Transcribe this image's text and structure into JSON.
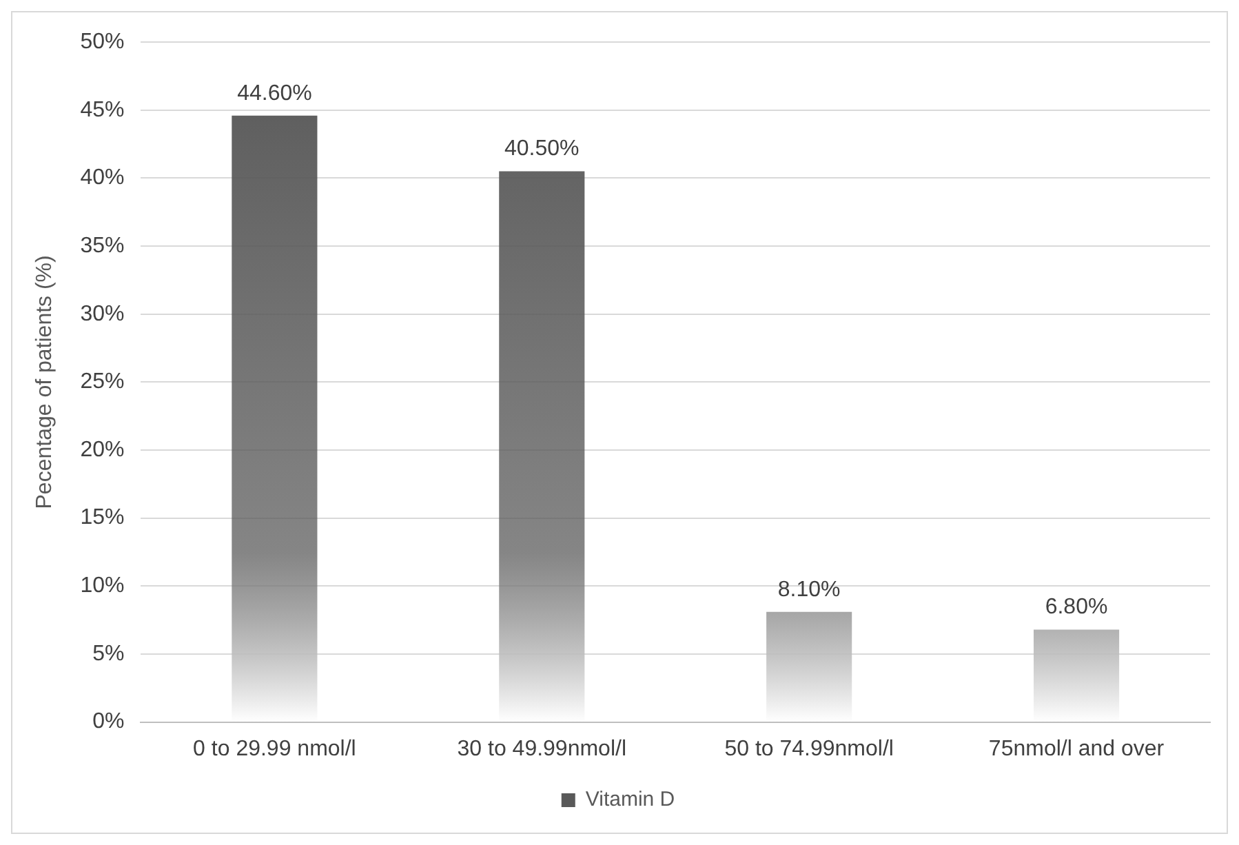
{
  "chart_data": {
    "type": "bar",
    "ylabel": "Pecentage of patients (%)",
    "categories": [
      "0 to 29.99 nmol/l",
      "30 to 49.99nmol/l",
      "50 to 74.99nmol/l",
      "75nmol/l and over"
    ],
    "series": [
      {
        "name": "Vitamin D",
        "color": "#595959",
        "values": [
          44.6,
          40.5,
          8.1,
          6.8
        ],
        "value_labels": [
          "44.60%",
          "40.50%",
          "8.10%",
          "6.80%"
        ]
      }
    ],
    "ylim": [
      0,
      50
    ],
    "yticks": [
      {
        "value": 0,
        "label": "0%"
      },
      {
        "value": 5,
        "label": "5%"
      },
      {
        "value": 10,
        "label": "10%"
      },
      {
        "value": 15,
        "label": "15%"
      },
      {
        "value": 20,
        "label": "20%"
      },
      {
        "value": 25,
        "label": "25%"
      },
      {
        "value": 30,
        "label": "30%"
      },
      {
        "value": 35,
        "label": "35%"
      },
      {
        "value": 40,
        "label": "40%"
      },
      {
        "value": 45,
        "label": "45%"
      },
      {
        "value": 50,
        "label": "50%"
      }
    ],
    "grid": "y",
    "legend": "bottom"
  }
}
